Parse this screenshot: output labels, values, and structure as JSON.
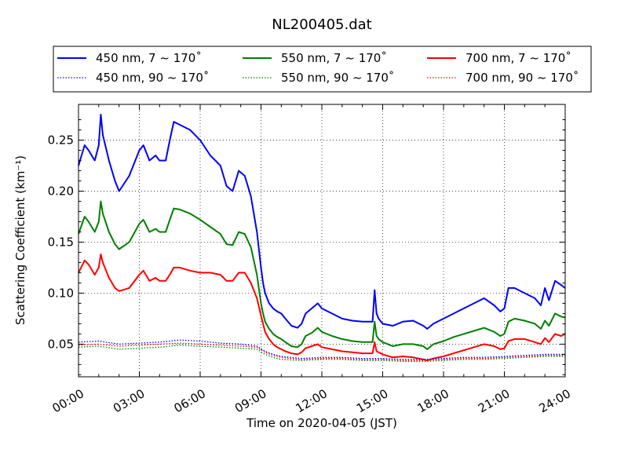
{
  "chart_data": {
    "type": "line",
    "title": "NL200405.dat",
    "xlabel": "Time on 2020-04-05 (JST)",
    "ylabel": "Scattering Coefficient (km⁻¹)",
    "xlim": [
      0,
      24
    ],
    "ylim": [
      0.018,
      0.285
    ],
    "grid": true,
    "legend_position": "top",
    "x_tick_labels": [
      "00:00",
      "03:00",
      "06:00",
      "09:00",
      "12:00",
      "15:00",
      "18:00",
      "21:00",
      "24:00"
    ],
    "x_ticks": [
      0,
      3,
      6,
      9,
      12,
      15,
      18,
      21,
      24
    ],
    "y_ticks": [
      0.05,
      0.1,
      0.15,
      0.2,
      0.25
    ],
    "y_tick_labels": [
      "0.05",
      "0.10",
      "0.15",
      "0.20",
      "0.25"
    ],
    "series": [
      {
        "name": "450 nm, 7 ~ 170˚",
        "color": "#0000ff",
        "style": "solid",
        "x": [
          0,
          0.3,
          0.5,
          0.8,
          1.0,
          1.1,
          1.2,
          1.5,
          1.8,
          2.0,
          2.5,
          3.0,
          3.2,
          3.5,
          3.8,
          4.0,
          4.3,
          4.5,
          4.7,
          5.0,
          5.5,
          6.0,
          6.5,
          7.0,
          7.3,
          7.6,
          7.9,
          8.2,
          8.5,
          8.8,
          9.0,
          9.1,
          9.2,
          9.4,
          9.6,
          9.8,
          10.0,
          10.2,
          10.5,
          10.8,
          11.0,
          11.2,
          11.5,
          11.8,
          12.0,
          12.5,
          13.0,
          13.5,
          14.0,
          14.5,
          14.6,
          14.7,
          14.8,
          15.0,
          15.5,
          16.0,
          16.5,
          17.0,
          17.2,
          17.5,
          18.0,
          18.5,
          19.0,
          19.5,
          20.0,
          20.5,
          20.8,
          21.0,
          21.2,
          21.5,
          22.0,
          22.5,
          22.8,
          23.0,
          23.2,
          23.5,
          23.8,
          24.0
        ],
        "values": [
          0.225,
          0.245,
          0.24,
          0.23,
          0.245,
          0.275,
          0.255,
          0.23,
          0.21,
          0.2,
          0.215,
          0.24,
          0.245,
          0.23,
          0.235,
          0.23,
          0.23,
          0.25,
          0.268,
          0.265,
          0.26,
          0.25,
          0.235,
          0.225,
          0.205,
          0.2,
          0.22,
          0.215,
          0.195,
          0.16,
          0.125,
          0.11,
          0.1,
          0.09,
          0.085,
          0.082,
          0.08,
          0.075,
          0.068,
          0.066,
          0.07,
          0.08,
          0.085,
          0.09,
          0.085,
          0.08,
          0.075,
          0.073,
          0.072,
          0.072,
          0.103,
          0.08,
          0.075,
          0.07,
          0.068,
          0.072,
          0.073,
          0.068,
          0.065,
          0.07,
          0.075,
          0.08,
          0.085,
          0.09,
          0.095,
          0.088,
          0.082,
          0.085,
          0.105,
          0.105,
          0.1,
          0.095,
          0.088,
          0.105,
          0.093,
          0.112,
          0.108,
          0.105
        ]
      },
      {
        "name": "550 nm, 7 ~ 170˚",
        "color": "#008000",
        "style": "solid",
        "x": [
          0,
          0.3,
          0.5,
          0.8,
          1.0,
          1.1,
          1.2,
          1.5,
          1.8,
          2.0,
          2.5,
          3.0,
          3.2,
          3.5,
          3.8,
          4.0,
          4.3,
          4.5,
          4.7,
          5.0,
          5.5,
          6.0,
          6.5,
          7.0,
          7.3,
          7.6,
          7.9,
          8.2,
          8.5,
          8.8,
          9.0,
          9.1,
          9.2,
          9.4,
          9.6,
          9.8,
          10.0,
          10.2,
          10.5,
          10.8,
          11.0,
          11.2,
          11.5,
          11.8,
          12.0,
          12.5,
          13.0,
          13.5,
          14.0,
          14.5,
          14.6,
          14.7,
          14.8,
          15.0,
          15.5,
          16.0,
          16.5,
          17.0,
          17.2,
          17.5,
          18.0,
          18.5,
          19.0,
          19.5,
          20.0,
          20.5,
          20.8,
          21.0,
          21.2,
          21.5,
          22.0,
          22.5,
          22.8,
          23.0,
          23.2,
          23.5,
          23.8,
          24.0
        ],
        "values": [
          0.158,
          0.175,
          0.17,
          0.16,
          0.17,
          0.19,
          0.178,
          0.16,
          0.148,
          0.143,
          0.15,
          0.168,
          0.172,
          0.16,
          0.163,
          0.16,
          0.16,
          0.172,
          0.183,
          0.182,
          0.178,
          0.172,
          0.165,
          0.158,
          0.148,
          0.147,
          0.16,
          0.158,
          0.145,
          0.118,
          0.09,
          0.08,
          0.072,
          0.065,
          0.06,
          0.057,
          0.055,
          0.052,
          0.048,
          0.047,
          0.05,
          0.058,
          0.061,
          0.066,
          0.062,
          0.058,
          0.055,
          0.053,
          0.052,
          0.052,
          0.072,
          0.058,
          0.055,
          0.052,
          0.048,
          0.05,
          0.05,
          0.048,
          0.045,
          0.05,
          0.053,
          0.057,
          0.06,
          0.063,
          0.066,
          0.062,
          0.058,
          0.06,
          0.072,
          0.075,
          0.073,
          0.07,
          0.065,
          0.073,
          0.068,
          0.08,
          0.077,
          0.076
        ]
      },
      {
        "name": "700 nm, 7 ~ 170˚",
        "color": "#ff0000",
        "style": "solid",
        "x": [
          0,
          0.3,
          0.5,
          0.8,
          1.0,
          1.1,
          1.2,
          1.5,
          1.8,
          2.0,
          2.5,
          3.0,
          3.2,
          3.5,
          3.8,
          4.0,
          4.3,
          4.5,
          4.7,
          5.0,
          5.5,
          6.0,
          6.5,
          7.0,
          7.3,
          7.6,
          7.9,
          8.2,
          8.5,
          8.8,
          9.0,
          9.1,
          9.2,
          9.4,
          9.6,
          9.8,
          10.0,
          10.2,
          10.5,
          10.8,
          11.0,
          11.2,
          11.5,
          11.8,
          12.0,
          12.5,
          13.0,
          13.5,
          14.0,
          14.5,
          14.6,
          14.7,
          14.8,
          15.0,
          15.5,
          16.0,
          16.5,
          17.0,
          17.2,
          17.5,
          18.0,
          18.5,
          19.0,
          19.5,
          20.0,
          20.5,
          20.8,
          21.0,
          21.2,
          21.5,
          22.0,
          22.5,
          22.8,
          23.0,
          23.2,
          23.5,
          23.8,
          24.0
        ],
        "values": [
          0.12,
          0.132,
          0.128,
          0.118,
          0.125,
          0.138,
          0.13,
          0.115,
          0.105,
          0.102,
          0.105,
          0.118,
          0.122,
          0.112,
          0.115,
          0.112,
          0.112,
          0.118,
          0.125,
          0.125,
          0.122,
          0.12,
          0.12,
          0.118,
          0.112,
          0.112,
          0.12,
          0.12,
          0.11,
          0.095,
          0.078,
          0.07,
          0.062,
          0.055,
          0.05,
          0.047,
          0.045,
          0.043,
          0.041,
          0.04,
          0.042,
          0.046,
          0.048,
          0.05,
          0.047,
          0.045,
          0.043,
          0.042,
          0.041,
          0.041,
          0.052,
          0.043,
          0.042,
          0.04,
          0.037,
          0.038,
          0.037,
          0.035,
          0.034,
          0.036,
          0.038,
          0.041,
          0.044,
          0.047,
          0.05,
          0.048,
          0.045,
          0.046,
          0.053,
          0.055,
          0.055,
          0.052,
          0.05,
          0.056,
          0.052,
          0.06,
          0.058,
          0.06
        ]
      },
      {
        "name": "450 nm, 90 ~ 170˚",
        "color": "#0000ff",
        "style": "dotted",
        "x": [
          0,
          1,
          2,
          3,
          4,
          5,
          6,
          7,
          8,
          8.8,
          9.2,
          9.6,
          10,
          11,
          12,
          13,
          14,
          15,
          16,
          17,
          18,
          19,
          20,
          21,
          22,
          23,
          24
        ],
        "values": [
          0.052,
          0.053,
          0.05,
          0.051,
          0.052,
          0.054,
          0.053,
          0.051,
          0.05,
          0.048,
          0.043,
          0.04,
          0.038,
          0.036,
          0.037,
          0.037,
          0.036,
          0.036,
          0.035,
          0.035,
          0.036,
          0.037,
          0.037,
          0.038,
          0.039,
          0.04,
          0.04
        ]
      },
      {
        "name": "550 nm, 90 ~ 170˚",
        "color": "#008000",
        "style": "dotted",
        "x": [
          0,
          1,
          2,
          3,
          4,
          5,
          6,
          7,
          8,
          8.8,
          9.2,
          9.6,
          10,
          11,
          12,
          13,
          14,
          15,
          16,
          17,
          18,
          19,
          20,
          21,
          22,
          23,
          24
        ],
        "values": [
          0.047,
          0.048,
          0.045,
          0.046,
          0.047,
          0.049,
          0.048,
          0.047,
          0.046,
          0.045,
          0.04,
          0.037,
          0.035,
          0.034,
          0.035,
          0.035,
          0.034,
          0.034,
          0.033,
          0.033,
          0.034,
          0.035,
          0.035,
          0.036,
          0.037,
          0.038,
          0.038
        ]
      },
      {
        "name": "700 nm, 90 ~ 170˚",
        "color": "#ff0000",
        "style": "dotted",
        "x": [
          0,
          1,
          2,
          3,
          4,
          5,
          6,
          7,
          8,
          8.8,
          9.2,
          9.6,
          10,
          11,
          12,
          13,
          14,
          15,
          16,
          17,
          18,
          19,
          20,
          21,
          22,
          23,
          24
        ],
        "values": [
          0.049,
          0.05,
          0.048,
          0.049,
          0.05,
          0.051,
          0.05,
          0.049,
          0.048,
          0.047,
          0.042,
          0.039,
          0.037,
          0.035,
          0.036,
          0.036,
          0.035,
          0.035,
          0.034,
          0.034,
          0.035,
          0.036,
          0.036,
          0.037,
          0.038,
          0.039,
          0.039
        ]
      }
    ]
  }
}
